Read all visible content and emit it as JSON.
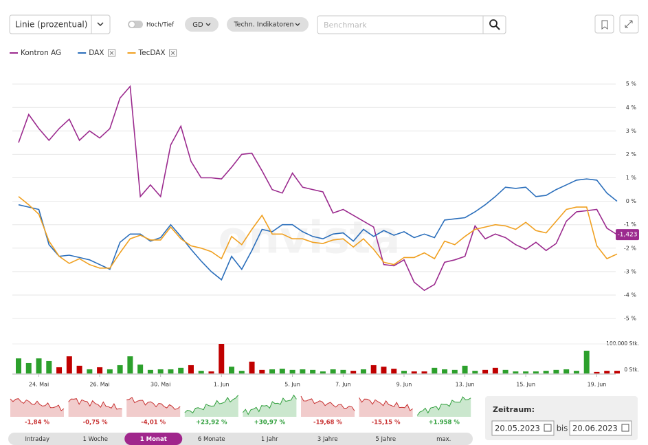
{
  "toolbar": {
    "chart_type": "Linie (prozentual)",
    "toggle_label": "Hoch/Tief",
    "gd": "GD",
    "indicators": "Techn. Indikatoren",
    "benchmark_placeholder": "Benchmark"
  },
  "watermark": "onvista",
  "chart_data": {
    "type": "line",
    "categories": [
      null,
      null,
      "24. Mai",
      null,
      null,
      null,
      null,
      null,
      "26. Mai",
      null,
      null,
      null,
      null,
      null,
      "30. Mai",
      null,
      null,
      null,
      null,
      null,
      "1. Jun",
      null,
      null,
      null,
      null,
      null,
      null,
      "5. Jun",
      null,
      null,
      null,
      null,
      "7. Jun",
      null,
      null,
      null,
      null,
      null,
      "9. Jun",
      null,
      null,
      null,
      null,
      null,
      "13. Jun",
      null,
      null,
      null,
      null,
      null,
      "15. Jun",
      null,
      null,
      null,
      null,
      null,
      null,
      "19. Jun",
      null,
      null
    ],
    "series": [
      {
        "name": "Kontron AG",
        "color": "#9b2a8e",
        "removable": false,
        "values": [
          2.5,
          3.7,
          3.1,
          2.6,
          3.1,
          3.5,
          2.6,
          3.0,
          2.7,
          3.1,
          4.4,
          4.9,
          0.2,
          0.7,
          0.2,
          2.4,
          3.2,
          1.7,
          1.0,
          1.0,
          0.95,
          1.45,
          2.0,
          2.05,
          1.3,
          0.5,
          0.35,
          1.2,
          0.6,
          0.5,
          0.4,
          -0.5,
          -0.35,
          -0.6,
          -0.85,
          -1.1,
          -2.7,
          -2.75,
          -2.5,
          -3.45,
          -3.8,
          -3.55,
          -2.6,
          -2.5,
          -2.35,
          -1.05,
          -1.6,
          -1.4,
          -1.55,
          -1.85,
          -2.05,
          -1.75,
          -2.1,
          -1.8,
          -0.85,
          -0.45,
          -0.4,
          -0.35,
          -1.15,
          -1.423
        ],
        "value_labels": [
          null,
          null,
          null,
          null,
          null,
          null,
          null,
          null,
          null,
          null,
          null,
          null,
          null,
          null,
          null,
          null,
          null,
          null,
          null,
          null,
          null,
          null,
          null,
          null,
          null,
          null,
          null,
          null,
          null,
          null,
          null,
          null,
          null,
          null,
          null,
          null,
          null,
          null,
          null,
          null,
          null,
          null,
          null,
          null,
          null,
          null,
          null,
          null,
          null,
          null,
          null,
          null,
          null,
          null,
          null,
          null,
          null,
          null,
          null,
          "-1,423"
        ]
      },
      {
        "name": "DAX",
        "color": "#2a6ebb",
        "removable": true,
        "values": [
          -0.15,
          -0.25,
          -0.35,
          -1.85,
          -2.35,
          -2.3,
          -2.4,
          -2.5,
          -2.7,
          -2.9,
          -1.75,
          -1.4,
          -1.4,
          -1.7,
          -1.55,
          -1.0,
          -1.5,
          -2.05,
          -2.55,
          -3.0,
          -3.35,
          -2.35,
          -2.9,
          -2.1,
          -1.2,
          -1.3,
          -1.0,
          -1.0,
          -1.3,
          -1.5,
          -1.6,
          -1.4,
          -1.35,
          -1.7,
          -1.2,
          -1.5,
          -1.25,
          -1.45,
          -1.3,
          -1.55,
          -1.4,
          -1.55,
          -0.8,
          -0.75,
          -0.7,
          -0.45,
          -0.15,
          0.2,
          0.6,
          0.55,
          0.6,
          0.2,
          0.25,
          0.5,
          0.7,
          0.9,
          0.95,
          0.9,
          0.35,
          0.0
        ]
      },
      {
        "name": "TecDAX",
        "color": "#f0a020",
        "removable": true,
        "values": [
          0.2,
          -0.15,
          -0.55,
          -1.7,
          -2.35,
          -2.65,
          -2.45,
          -2.7,
          -2.85,
          -2.85,
          -2.2,
          -1.6,
          -1.45,
          -1.65,
          -1.65,
          -1.1,
          -1.6,
          -1.9,
          -2.0,
          -2.15,
          -2.45,
          -1.5,
          -1.85,
          -1.2,
          -0.6,
          -1.4,
          -1.4,
          -1.6,
          -1.6,
          -1.75,
          -1.8,
          -1.65,
          -1.6,
          -1.95,
          -1.6,
          -2.05,
          -2.6,
          -2.7,
          -2.4,
          -2.4,
          -2.2,
          -2.45,
          -1.7,
          -1.85,
          -1.5,
          -1.2,
          -1.1,
          -1.0,
          -1.05,
          -1.2,
          -0.9,
          -1.25,
          -1.35,
          -0.85,
          -0.35,
          -0.25,
          -0.25,
          -1.9,
          -2.45,
          -2.25
        ]
      }
    ],
    "ylim": [
      -5.35,
      5.65
    ],
    "yticks": [
      {
        "value": 5,
        "label": "5 %"
      },
      {
        "value": 4,
        "label": "4 %"
      },
      {
        "value": 3,
        "label": "3 %"
      },
      {
        "value": 2,
        "label": "2 %"
      },
      {
        "value": 1,
        "label": "1 %"
      },
      {
        "value": 0,
        "label": "0 %"
      },
      {
        "value": -1,
        "label": "-1 %"
      },
      {
        "value": -2,
        "label": "-2 %"
      },
      {
        "value": -3,
        "label": "-3 %"
      },
      {
        "value": -4,
        "label": "-4 %"
      },
      {
        "value": -5,
        "label": "-5 %"
      }
    ],
    "grid": true
  },
  "volume": {
    "type": "bar",
    "values": [
      51000,
      35000,
      51000,
      42000,
      21000,
      58000,
      26000,
      14000,
      21000,
      14000,
      28000,
      58000,
      30000,
      12000,
      14000,
      14000,
      19000,
      28000,
      9000,
      7000,
      100000,
      23000,
      9000,
      40000,
      12000,
      14000,
      16000,
      12000,
      14000,
      12000,
      7000,
      14000,
      12000,
      9000,
      14000,
      28000,
      23000,
      16000,
      9000,
      7000,
      7000,
      19000,
      14000,
      12000,
      26000,
      9000,
      12000,
      19000,
      12000,
      7000,
      7000,
      7000,
      9000,
      12000,
      14000,
      9000,
      77000,
      5000,
      9000,
      9000
    ],
    "colors": [
      "#2ca02c",
      "#2ca02c",
      "#2ca02c",
      "#2ca02c",
      "#c00000",
      "#c00000",
      "#c00000",
      "#2ca02c",
      "#c00000",
      "#2ca02c",
      "#2ca02c",
      "#2ca02c",
      "#2ca02c",
      "#2ca02c",
      "#2ca02c",
      "#2ca02c",
      "#2ca02c",
      "#c00000",
      "#2ca02c",
      "#c00000",
      "#c00000",
      "#2ca02c",
      "#2ca02c",
      "#c00000",
      "#c00000",
      "#2ca02c",
      "#2ca02c",
      "#2ca02c",
      "#2ca02c",
      "#2ca02c",
      "#2ca02c",
      "#2ca02c",
      "#2ca02c",
      "#c00000",
      "#2ca02c",
      "#c00000",
      "#c00000",
      "#c00000",
      "#2ca02c",
      "#c00000",
      "#c00000",
      "#2ca02c",
      "#2ca02c",
      "#2ca02c",
      "#2ca02c",
      "#2ca02c",
      "#c00000",
      "#c00000",
      "#2ca02c",
      "#2ca02c",
      "#2ca02c",
      "#2ca02c",
      "#2ca02c",
      "#2ca02c",
      "#2ca02c",
      "#2ca02c",
      "#2ca02c",
      "#c00000",
      "#c00000",
      "#c00000"
    ],
    "ylim": [
      0,
      100000
    ],
    "yticks": [
      {
        "value": 100000,
        "label": "100.000 Stk."
      },
      {
        "value": 0,
        "label": "0 Stk."
      }
    ]
  },
  "periods": [
    {
      "label": "Intraday",
      "change": "-1,84 %",
      "color": "#c83232",
      "active": false
    },
    {
      "label": "1 Woche",
      "change": "-0,75 %",
      "color": "#c83232",
      "active": false
    },
    {
      "label": "1 Monat",
      "change": "-4,01 %",
      "color": "#c83232",
      "active": true
    },
    {
      "label": "6 Monate",
      "change": "+23,92 %",
      "color": "#2e9e3a",
      "active": false
    },
    {
      "label": "1 Jahr",
      "change": "+30,97 %",
      "color": "#2e9e3a",
      "active": false
    },
    {
      "label": "3 Jahre",
      "change": "-19,68 %",
      "color": "#c83232",
      "active": false
    },
    {
      "label": "5 Jahre",
      "change": "-15,15 %",
      "color": "#c83232",
      "active": false
    },
    {
      "label": "max.",
      "change": "+1.958 %",
      "color": "#2e9e3a",
      "active": false
    }
  ],
  "range": {
    "title": "Zeitraum:",
    "from": "20.05.2023",
    "separator": "bis",
    "to": "20.06.2023"
  }
}
